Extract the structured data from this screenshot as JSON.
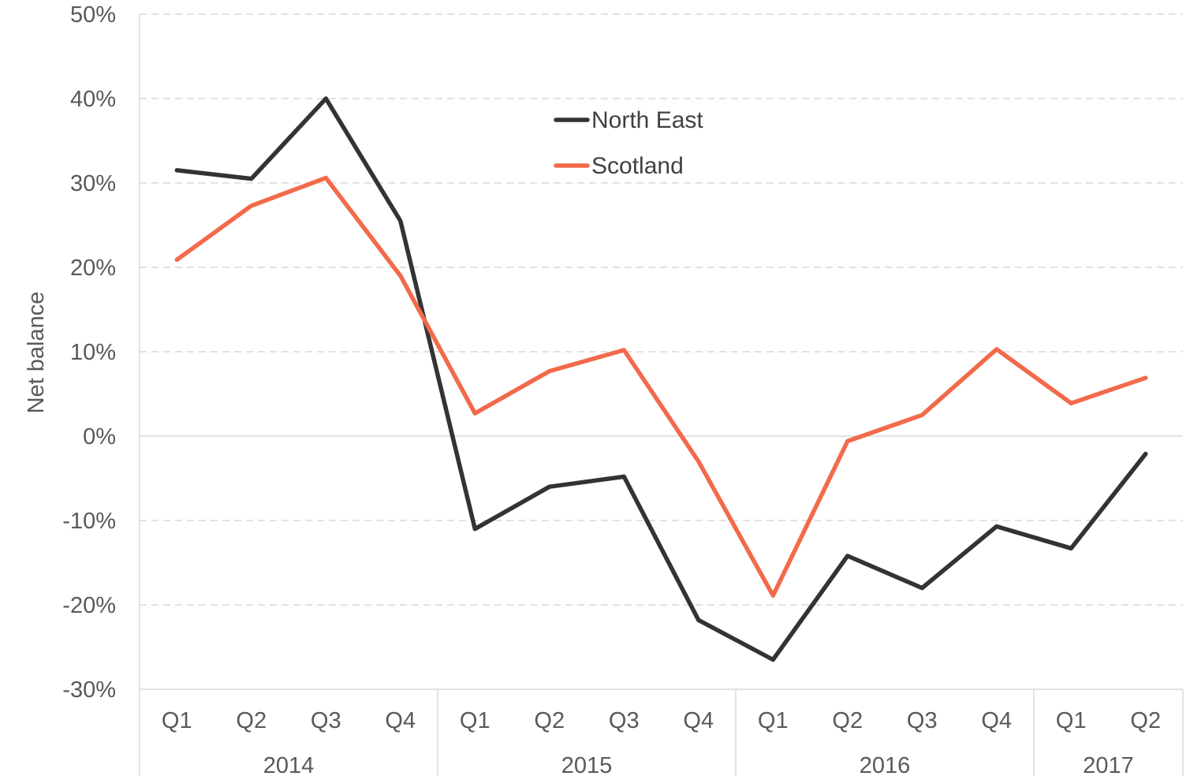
{
  "chart_data": {
    "type": "line",
    "title": "",
    "ylabel": "Net balance",
    "xlabel": "",
    "ylim": [
      -30,
      50
    ],
    "yticks": [
      "50%",
      "40%",
      "30%",
      "20%",
      "10%",
      "0%",
      "-10%",
      "-20%",
      "-30%"
    ],
    "ytick_values": [
      50,
      40,
      30,
      20,
      10,
      0,
      -10,
      -20,
      -30
    ],
    "categories": [
      "Q1",
      "Q2",
      "Q3",
      "Q4",
      "Q1",
      "Q2",
      "Q3",
      "Q4",
      "Q1",
      "Q2",
      "Q3",
      "Q4",
      "Q1",
      "Q2"
    ],
    "groups": [
      {
        "label": "2014",
        "count": 4
      },
      {
        "label": "2015",
        "count": 4
      },
      {
        "label": "2016",
        "count": 4
      },
      {
        "label": "2017",
        "count": 2
      }
    ],
    "series": [
      {
        "name": "North East",
        "color": "#333333",
        "values": [
          31.5,
          30.5,
          40.0,
          25.5,
          -11.0,
          -6.0,
          -4.8,
          -21.8,
          -26.5,
          -14.2,
          -18.0,
          -10.7,
          -13.3,
          -2.1
        ]
      },
      {
        "name": "Scotland",
        "color": "#F26A4B",
        "values": [
          20.9,
          27.3,
          30.6,
          19.0,
          2.7,
          7.7,
          10.2,
          -3.0,
          -18.9,
          -0.6,
          2.5,
          10.3,
          3.9,
          6.9
        ]
      }
    ],
    "grid": true,
    "legend_position": "top-center"
  }
}
